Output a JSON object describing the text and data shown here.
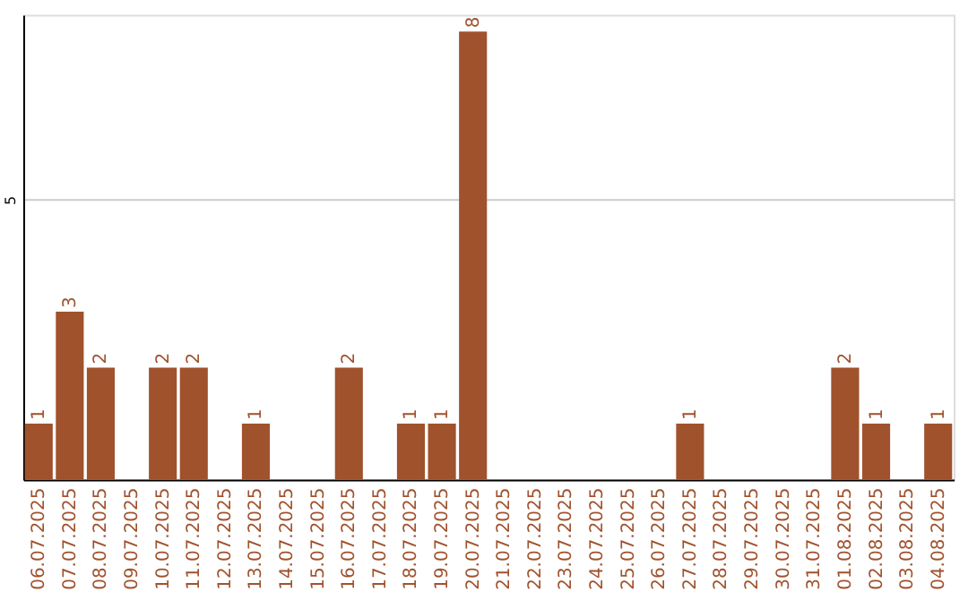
{
  "chart_data": {
    "type": "bar",
    "categories": [
      "06.07.2025",
      "07.07.2025",
      "08.07.2025",
      "09.07.2025",
      "10.07.2025",
      "11.07.2025",
      "12.07.2025",
      "13.07.2025",
      "14.07.2025",
      "15.07.2025",
      "16.07.2025",
      "17.07.2025",
      "18.07.2025",
      "19.07.2025",
      "20.07.2025",
      "21.07.2025",
      "22.07.2025",
      "23.07.2025",
      "24.07.2025",
      "25.07.2025",
      "26.07.2025",
      "27.07.2025",
      "28.07.2025",
      "29.07.2025",
      "30.07.2025",
      "31.07.2025",
      "01.08.2025",
      "02.08.2025",
      "03.08.2025",
      "04.08.2025"
    ],
    "values": [
      1,
      3,
      2,
      0,
      2,
      2,
      0,
      1,
      0,
      0,
      2,
      0,
      1,
      1,
      8,
      0,
      0,
      0,
      0,
      0,
      0,
      1,
      0,
      0,
      0,
      0,
      2,
      1,
      0,
      1
    ],
    "value_labels": [
      "1",
      "3",
      "2",
      null,
      "2",
      "2",
      null,
      "1",
      null,
      null,
      "2",
      null,
      "1",
      "1",
      "8",
      null,
      null,
      null,
      null,
      null,
      null,
      "1",
      null,
      null,
      null,
      null,
      "2",
      "1",
      null,
      "1"
    ],
    "color": "#a0522d",
    "ylim": [
      0,
      8.3
    ],
    "yticks": [
      5
    ],
    "grid": "y"
  }
}
